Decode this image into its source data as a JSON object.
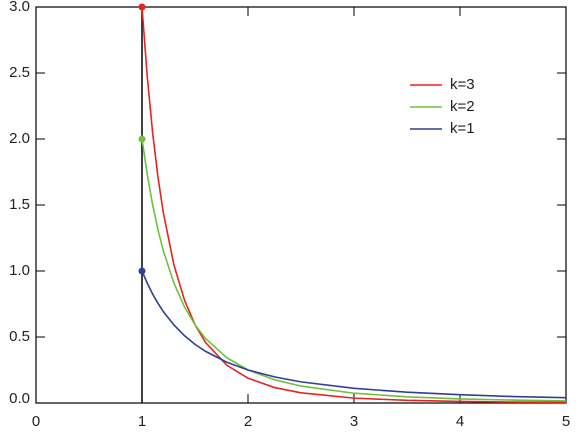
{
  "chart_data": {
    "type": "line",
    "x": [
      1,
      1.05,
      1.1,
      1.15,
      1.2,
      1.3,
      1.4,
      1.5,
      1.6,
      1.8,
      2,
      2.25,
      2.5,
      3,
      3.5,
      4,
      4.5,
      5
    ],
    "series": [
      {
        "name": "k=3",
        "color": "#e8231f",
        "values": [
          3,
          2.468,
          2.049,
          1.715,
          1.447,
          1.05,
          0.781,
          0.593,
          0.458,
          0.286,
          0.188,
          0.117,
          0.077,
          0.037,
          0.02,
          0.012,
          0.007,
          0.005
        ]
      },
      {
        "name": "k=2",
        "color": "#6cc23a",
        "values": [
          2,
          1.728,
          1.503,
          1.315,
          1.157,
          0.91,
          0.729,
          0.593,
          0.488,
          0.343,
          0.25,
          0.176,
          0.128,
          0.074,
          0.047,
          0.031,
          0.022,
          0.016
        ]
      },
      {
        "name": "k=1",
        "color": "#2f3f9a",
        "values": [
          1,
          0.907,
          0.826,
          0.756,
          0.694,
          0.592,
          0.51,
          0.444,
          0.391,
          0.309,
          0.25,
          0.198,
          0.16,
          0.111,
          0.082,
          0.063,
          0.049,
          0.04
        ]
      }
    ],
    "vertical_line_x": 1,
    "xlim": [
      0,
      5
    ],
    "xticks": [
      0,
      1,
      2,
      3,
      4,
      5
    ],
    "ylim": [
      0,
      3
    ],
    "yticks": [
      {
        "value": 0,
        "label": "0.0"
      },
      {
        "value": 0.5,
        "label": "0.5"
      },
      {
        "value": 1,
        "label": "1.0"
      },
      {
        "value": 1.5,
        "label": "1.5"
      },
      {
        "value": 2,
        "label": "2.0"
      },
      {
        "value": 2.5,
        "label": "2.5"
      },
      {
        "value": 3,
        "label": "3.0"
      }
    ],
    "legend": "upper right",
    "grid": false
  }
}
